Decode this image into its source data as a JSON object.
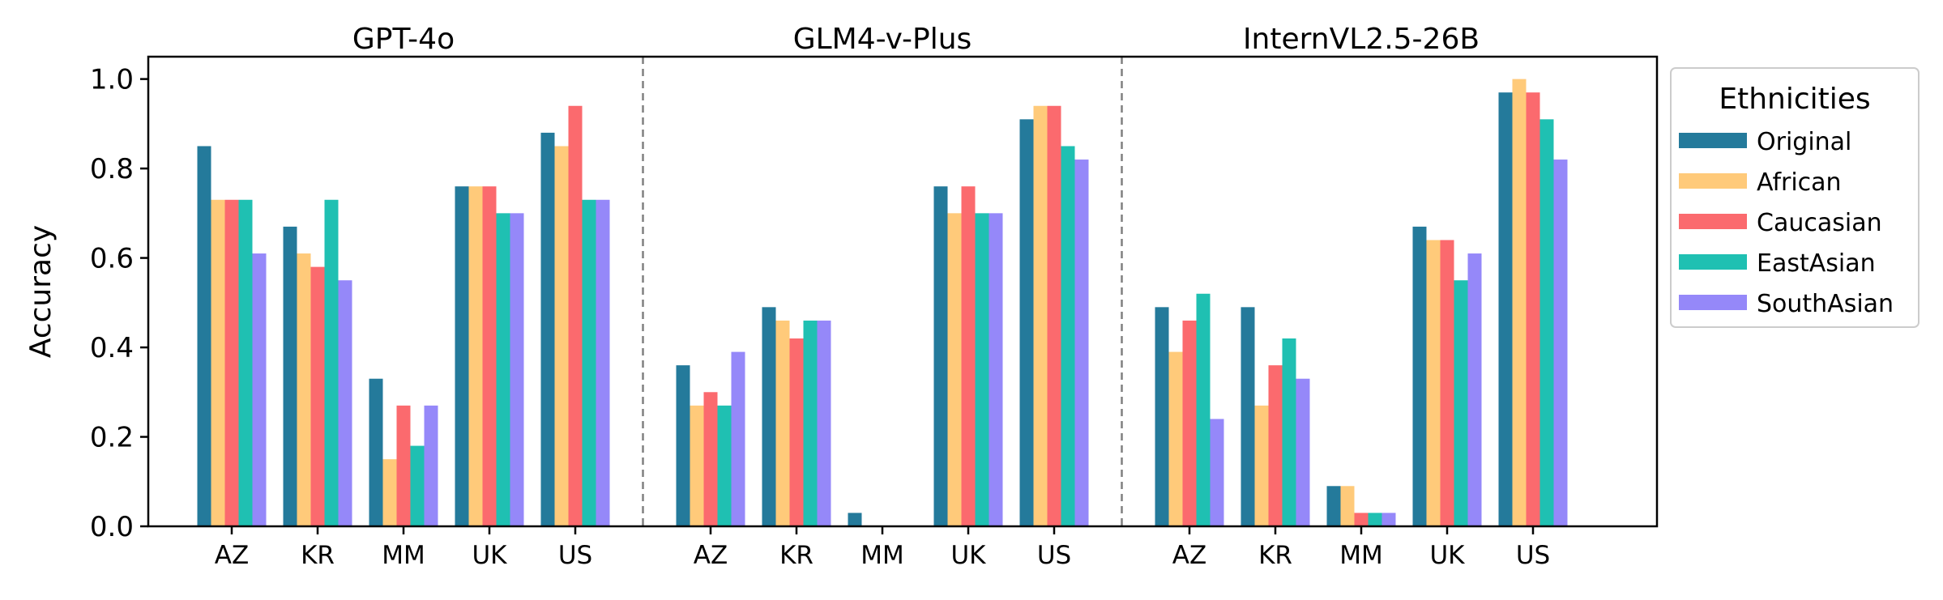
{
  "chart_data": {
    "type": "bar",
    "ylabel": "Accuracy",
    "ylim": [
      0,
      1.05
    ],
    "yticks": [
      0.0,
      0.2,
      0.4,
      0.6,
      0.8,
      1.0
    ],
    "ytick_labels": [
      "0.0",
      "0.2",
      "0.4",
      "0.6",
      "0.8",
      "1.0"
    ],
    "grid": false,
    "legend": {
      "title": "Ethnicities",
      "placement": "outside-right-top",
      "entries": [
        "Original",
        "African",
        "Caucasian",
        "EastAsian",
        "SouthAsian"
      ]
    },
    "series_colors": [
      "#247a9b",
      "#ffca7a",
      "#fb6a6e",
      "#1fc0b2",
      "#9588f9"
    ],
    "categories": [
      "AZ",
      "KR",
      "MM",
      "UK",
      "US"
    ],
    "groups": [
      {
        "title": "GPT-4o",
        "series": [
          {
            "name": "Original",
            "values": [
              0.85,
              0.67,
              0.33,
              0.76,
              0.88
            ]
          },
          {
            "name": "African",
            "values": [
              0.73,
              0.61,
              0.15,
              0.76,
              0.85
            ]
          },
          {
            "name": "Caucasian",
            "values": [
              0.73,
              0.58,
              0.27,
              0.76,
              0.94
            ]
          },
          {
            "name": "EastAsian",
            "values": [
              0.73,
              0.73,
              0.18,
              0.7,
              0.73
            ]
          },
          {
            "name": "SouthAsian",
            "values": [
              0.61,
              0.55,
              0.27,
              0.7,
              0.73
            ]
          }
        ]
      },
      {
        "title": "GLM4-v-Plus",
        "series": [
          {
            "name": "Original",
            "values": [
              0.36,
              0.49,
              0.03,
              0.76,
              0.91
            ]
          },
          {
            "name": "African",
            "values": [
              0.27,
              0.46,
              0.0,
              0.7,
              0.94
            ]
          },
          {
            "name": "Caucasian",
            "values": [
              0.3,
              0.42,
              0.0,
              0.76,
              0.94
            ]
          },
          {
            "name": "EastAsian",
            "values": [
              0.27,
              0.46,
              0.0,
              0.7,
              0.85
            ]
          },
          {
            "name": "SouthAsian",
            "values": [
              0.39,
              0.46,
              0.0,
              0.7,
              0.82
            ]
          }
        ]
      },
      {
        "title": "InternVL2.5-26B",
        "series": [
          {
            "name": "Original",
            "values": [
              0.49,
              0.49,
              0.09,
              0.67,
              0.97
            ]
          },
          {
            "name": "African",
            "values": [
              0.39,
              0.27,
              0.09,
              0.64,
              1.0
            ]
          },
          {
            "name": "Caucasian",
            "values": [
              0.46,
              0.36,
              0.03,
              0.64,
              0.97
            ]
          },
          {
            "name": "EastAsian",
            "values": [
              0.52,
              0.42,
              0.03,
              0.55,
              0.91
            ]
          },
          {
            "name": "SouthAsian",
            "values": [
              0.24,
              0.33,
              0.03,
              0.61,
              0.82
            ]
          }
        ]
      }
    ]
  }
}
